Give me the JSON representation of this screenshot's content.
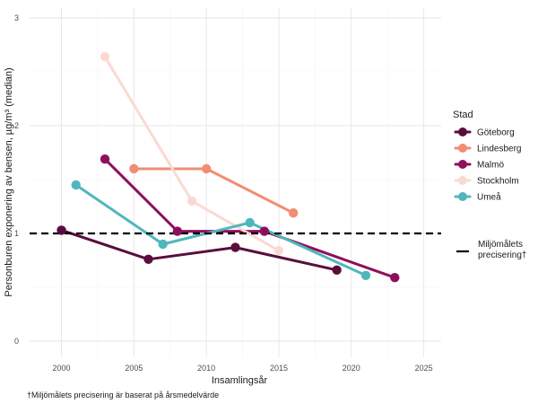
{
  "chart_data": {
    "type": "line",
    "title": "",
    "xlabel": "Insamlingsår",
    "ylabel": "Personburen exponering av bensen, µg/m³ (median)",
    "xlim": [
      1997.8,
      2026.2
    ],
    "ylim": [
      -0.15,
      3.1
    ],
    "x_ticks": [
      2000,
      2005,
      2010,
      2015,
      2020,
      2025
    ],
    "y_ticks": [
      0,
      1,
      2,
      3
    ],
    "grid": true,
    "legend_title": "Stad",
    "legend_position": "right",
    "series": [
      {
        "name": "Göteborg",
        "color": "#5a0d3d",
        "points": [
          [
            2000,
            1.03
          ],
          [
            2006,
            0.76
          ],
          [
            2012,
            0.87
          ],
          [
            2019,
            0.66
          ]
        ]
      },
      {
        "name": "Lindesberg",
        "color": "#f28c73",
        "points": [
          [
            2005,
            1.6
          ],
          [
            2010,
            1.6
          ],
          [
            2016,
            1.19
          ]
        ]
      },
      {
        "name": "Malmö",
        "color": "#8f0f5c",
        "points": [
          [
            2003,
            1.69
          ],
          [
            2008,
            1.02
          ],
          [
            2014,
            1.02
          ],
          [
            2023,
            0.59
          ]
        ]
      },
      {
        "name": "Stockholm",
        "color": "#fbd9d3",
        "points": [
          [
            2003,
            2.64
          ],
          [
            2009,
            1.3
          ],
          [
            2015,
            0.84
          ]
        ]
      },
      {
        "name": "Umeå",
        "color": "#4fb7bc",
        "points": [
          [
            2001,
            1.45
          ],
          [
            2007,
            0.9
          ],
          [
            2013,
            1.1
          ],
          [
            2021,
            0.61
          ]
        ]
      }
    ],
    "reference_line": {
      "y": 1.0,
      "label": "Miljömålets precisering†",
      "style": "dashed",
      "color": "#000000"
    },
    "footnote": "†Miljömålets precisering är baserat på årsmedelvärde"
  }
}
